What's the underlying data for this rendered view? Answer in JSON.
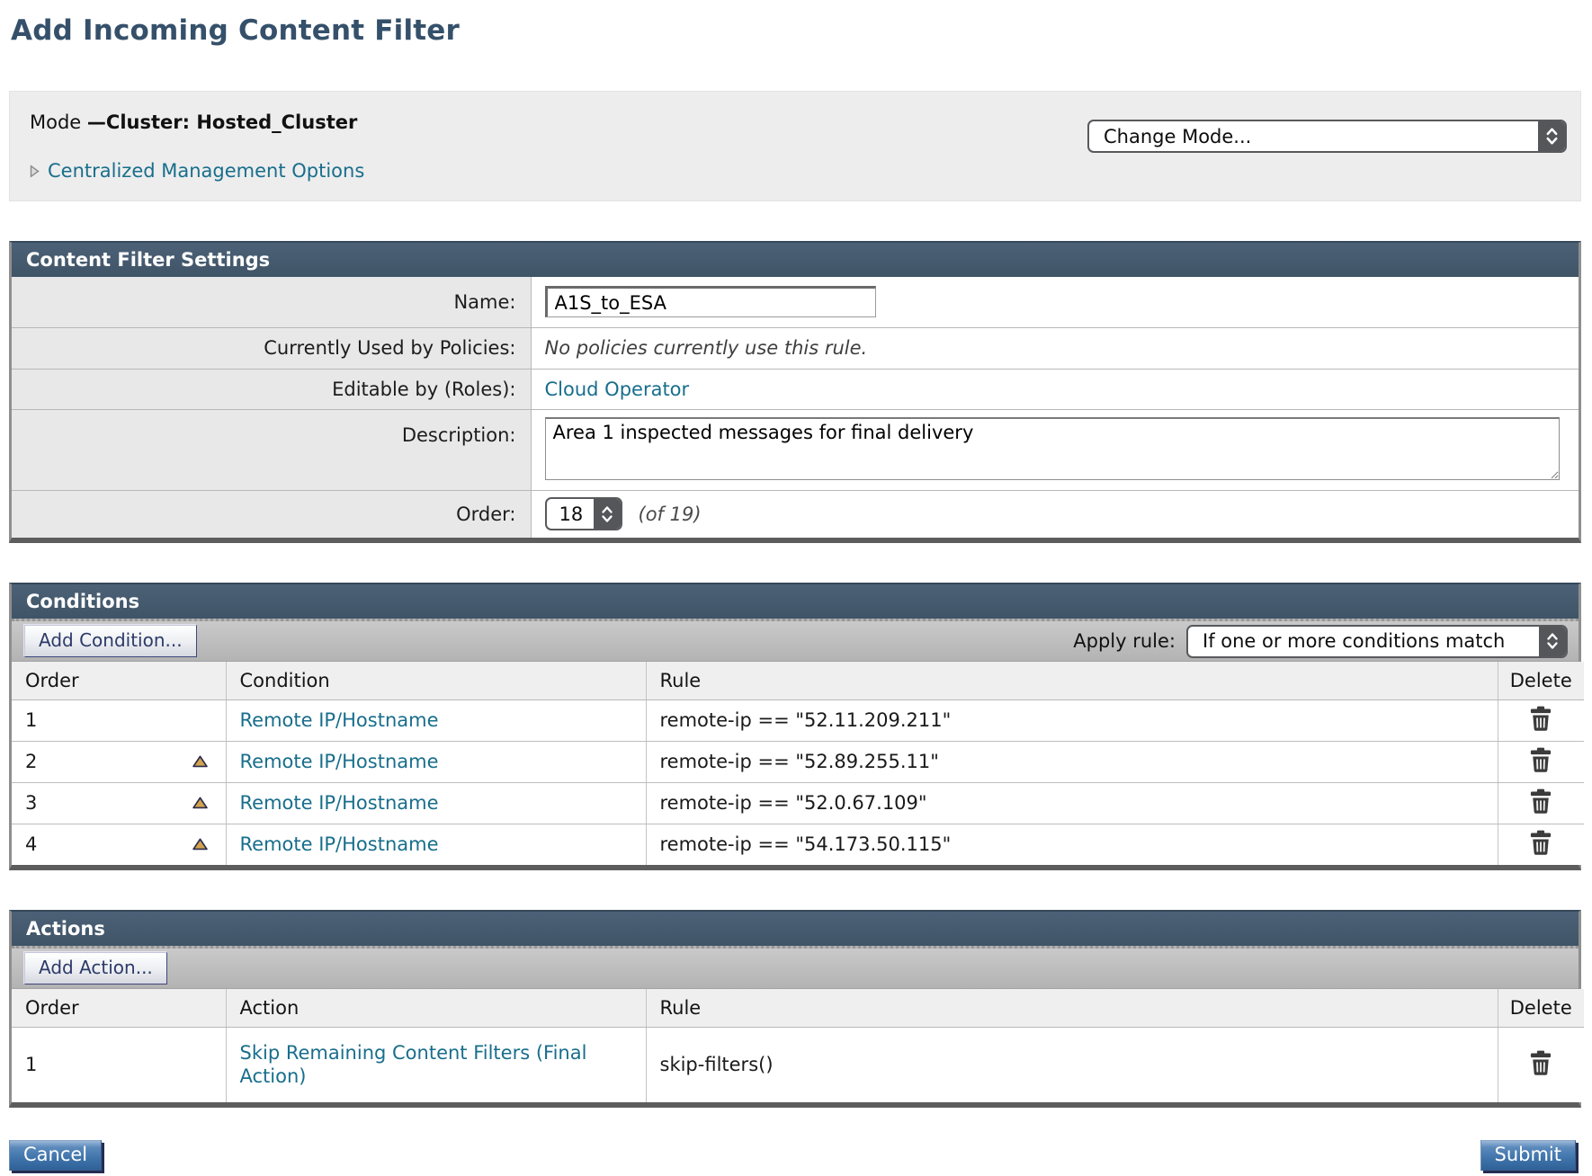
{
  "page": {
    "title": "Add Incoming Content Filter"
  },
  "mode_box": {
    "mode_label": "Mode ",
    "mode_value": "—Cluster: Hosted_Cluster",
    "change_mode_value": "Change Mode...",
    "centralized_link": "Centralized Management Options"
  },
  "settings": {
    "header": "Content Filter Settings",
    "name_label": "Name:",
    "name_value": "A1S_to_ESA",
    "policies_label": "Currently Used by Policies:",
    "policies_value": "No policies currently use this rule.",
    "editable_label": "Editable by (Roles):",
    "editable_value": "Cloud Operator",
    "description_label": "Description:",
    "description_value": "Area 1 inspected messages for final delivery",
    "order_label": "Order:",
    "order_value": "18",
    "order_total": "(of 19)"
  },
  "conditions": {
    "header": "Conditions",
    "add_button": "Add Condition...",
    "apply_rule_label": "Apply rule:",
    "apply_rule_value": "If one or more conditions match",
    "columns": [
      "Order",
      "Condition",
      "Rule",
      "Delete"
    ],
    "rows": [
      {
        "order": "1",
        "move_up": false,
        "condition": "Remote IP/Hostname",
        "rule": "remote-ip == \"52.11.209.211\""
      },
      {
        "order": "2",
        "move_up": true,
        "condition": "Remote IP/Hostname",
        "rule": "remote-ip == \"52.89.255.11\""
      },
      {
        "order": "3",
        "move_up": true,
        "condition": "Remote IP/Hostname",
        "rule": "remote-ip == \"52.0.67.109\""
      },
      {
        "order": "4",
        "move_up": true,
        "condition": "Remote IP/Hostname",
        "rule": "remote-ip == \"54.173.50.115\""
      }
    ]
  },
  "actions": {
    "header": "Actions",
    "add_button": "Add Action...",
    "columns": [
      "Order",
      "Action",
      "Rule",
      "Delete"
    ],
    "rows": [
      {
        "order": "1",
        "action": "Skip Remaining Content Filters (Final Action)",
        "rule": "skip-filters()"
      }
    ]
  },
  "footer": {
    "cancel": "Cancel",
    "submit": "Submit"
  },
  "icons": {
    "stepper": "up-down-stepper-icon",
    "delete": "trash-icon",
    "move_up": "up-arrow-icon",
    "expand": "right-triangle-icon"
  },
  "colors": {
    "panel_header_bg": "#455a6e",
    "link": "#186e8c",
    "title": "#35506a",
    "label_col_bg": "#e8e8e8",
    "mode_box_bg": "#ededed",
    "button_blue": "#3f74ab",
    "up_arrow_fill": "#d2a24c"
  }
}
